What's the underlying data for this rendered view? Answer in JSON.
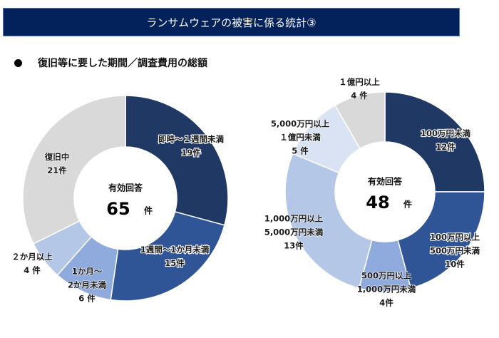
{
  "header": {
    "title": "ランサムウェアの被害に係る統計③"
  },
  "subtitle": {
    "text": "復旧等に要した期間／調査費用の総額"
  },
  "chart_data": [
    {
      "type": "pie",
      "variant": "donut",
      "title": "復旧等に要した期間",
      "center": {
        "title": "有効回答",
        "value": "65",
        "unit": "件"
      },
      "slices": [
        {
          "lines": [
            "即時～１週間未満",
            "19件"
          ],
          "value": 19,
          "color": "#1f3864"
        },
        {
          "lines": [
            "1週間～1か月未満",
            "15件"
          ],
          "value": 15,
          "color": "#2f5597"
        },
        {
          "lines": [
            "1か月～",
            "2か月未満",
            "6 件"
          ],
          "value": 6,
          "color": "#8faadc"
        },
        {
          "lines": [
            "２か月以上",
            "4 件"
          ],
          "value": 4,
          "color": "#b4c7e7"
        },
        {
          "lines": [
            "復旧中",
            "21件"
          ],
          "value": 21,
          "color": "#d9d9d9"
        }
      ]
    },
    {
      "type": "pie",
      "variant": "donut",
      "title": "調査費用の総額",
      "center": {
        "title": "有効回答",
        "value": "48",
        "unit": "件"
      },
      "slices": [
        {
          "lines": [
            "100万円未満",
            "12件"
          ],
          "value": 12,
          "color": "#1f3864"
        },
        {
          "lines": [
            "100万円以上",
            "500万円未満",
            "10件"
          ],
          "value": 10,
          "color": "#2f5597"
        },
        {
          "lines": [
            "500万円以上",
            "1,000万円未満",
            "4件"
          ],
          "value": 4,
          "color": "#8faadc"
        },
        {
          "lines": [
            "1,000万円以上",
            "5,000万円未満",
            "13件"
          ],
          "value": 13,
          "color": "#b4c7e7"
        },
        {
          "lines": [
            "5,000万円以上",
            "１億円未満",
            "5 件"
          ],
          "value": 5,
          "color": "#dae3f3"
        },
        {
          "lines": [
            "１億円以上",
            "4 件"
          ],
          "value": 4,
          "color": "#d9d9d9"
        }
      ]
    }
  ]
}
